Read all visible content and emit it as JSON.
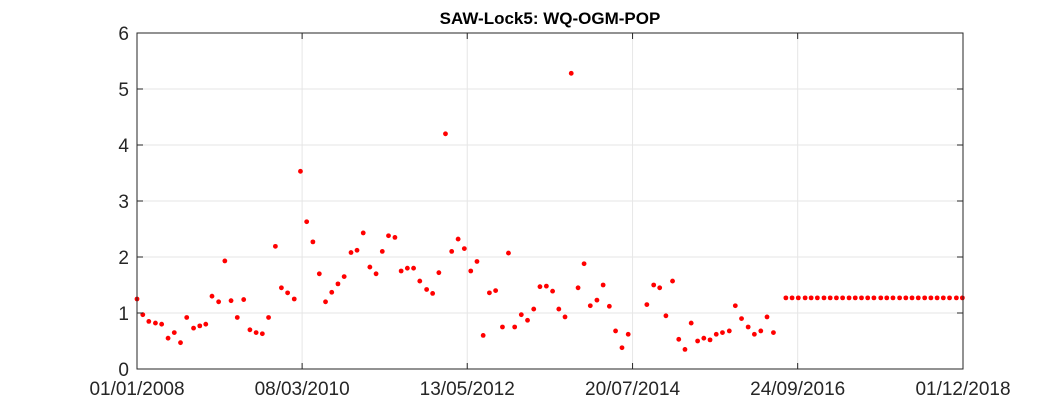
{
  "chart_data": {
    "type": "scatter",
    "title": "SAW-Lock5: WQ-OGM-POP",
    "xlabel": "",
    "ylabel": "",
    "x_tick_labels": [
      "01/01/2008",
      "08/03/2010",
      "13/05/2012",
      "20/07/2014",
      "24/09/2016",
      "01/12/2018"
    ],
    "x_ticks": [
      "2008-01-01",
      "2010-03-08",
      "2012-05-13",
      "2014-07-20",
      "2016-09-24",
      "2018-12-01"
    ],
    "xlim": [
      "2008-01-01",
      "2018-12-01"
    ],
    "y_ticks": [
      0,
      1,
      2,
      3,
      4,
      5,
      6
    ],
    "y_tick_labels": [
      "0",
      "1",
      "2",
      "3",
      "4",
      "5",
      "6"
    ],
    "ylim": [
      0,
      6
    ],
    "grid": true,
    "marker_color": "#ff0000",
    "series": [
      {
        "points": [
          [
            "2008-01-01",
            1.25
          ],
          [
            "2008-01-29",
            0.97
          ],
          [
            "2008-02-27",
            0.85
          ],
          [
            "2008-03-30",
            0.82
          ],
          [
            "2008-04-29",
            0.8
          ],
          [
            "2008-05-30",
            0.55
          ],
          [
            "2008-06-29",
            0.65
          ],
          [
            "2008-07-29",
            0.47
          ],
          [
            "2008-08-28",
            0.92
          ],
          [
            "2008-09-30",
            0.73
          ],
          [
            "2008-10-30",
            0.77
          ],
          [
            "2008-11-28",
            0.8
          ],
          [
            "2008-12-28",
            1.3
          ],
          [
            "2009-01-29",
            1.2
          ],
          [
            "2009-02-28",
            1.93
          ],
          [
            "2009-03-30",
            1.22
          ],
          [
            "2009-04-29",
            0.92
          ],
          [
            "2009-05-30",
            1.24
          ],
          [
            "2009-06-29",
            0.7
          ],
          [
            "2009-07-29",
            0.65
          ],
          [
            "2009-08-28",
            0.63
          ],
          [
            "2009-09-27",
            0.92
          ],
          [
            "2009-10-30",
            2.19
          ],
          [
            "2009-11-28",
            1.45
          ],
          [
            "2009-12-28",
            1.36
          ],
          [
            "2010-01-29",
            1.25
          ],
          [
            "2010-02-28",
            3.53
          ],
          [
            "2010-03-30",
            2.63
          ],
          [
            "2010-04-29",
            2.27
          ],
          [
            "2010-05-30",
            1.7
          ],
          [
            "2010-06-29",
            1.2
          ],
          [
            "2010-07-29",
            1.37
          ],
          [
            "2010-08-28",
            1.52
          ],
          [
            "2010-09-27",
            1.65
          ],
          [
            "2010-10-30",
            2.08
          ],
          [
            "2010-11-28",
            2.12
          ],
          [
            "2010-12-28",
            2.43
          ],
          [
            "2011-01-29",
            1.82
          ],
          [
            "2011-02-28",
            1.7
          ],
          [
            "2011-03-30",
            2.1
          ],
          [
            "2011-04-29",
            2.38
          ],
          [
            "2011-05-30",
            2.35
          ],
          [
            "2011-06-29",
            1.75
          ],
          [
            "2011-07-29",
            1.8
          ],
          [
            "2011-08-28",
            1.8
          ],
          [
            "2011-09-27",
            1.57
          ],
          [
            "2011-10-30",
            1.42
          ],
          [
            "2011-11-28",
            1.35
          ],
          [
            "2011-12-28",
            1.72
          ],
          [
            "2012-01-29",
            4.2
          ],
          [
            "2012-02-28",
            2.1
          ],
          [
            "2012-03-30",
            2.32
          ],
          [
            "2012-04-29",
            2.15
          ],
          [
            "2012-05-30",
            1.75
          ],
          [
            "2012-06-29",
            1.92
          ],
          [
            "2012-07-29",
            0.6
          ],
          [
            "2012-08-28",
            1.36
          ],
          [
            "2012-09-27",
            1.4
          ],
          [
            "2012-10-30",
            0.75
          ],
          [
            "2012-11-28",
            2.07
          ],
          [
            "2012-12-28",
            0.75
          ],
          [
            "2013-01-29",
            0.97
          ],
          [
            "2013-02-28",
            0.87
          ],
          [
            "2013-03-30",
            1.07
          ],
          [
            "2013-04-29",
            1.47
          ],
          [
            "2013-05-30",
            1.48
          ],
          [
            "2013-06-29",
            1.39
          ],
          [
            "2013-07-29",
            1.07
          ],
          [
            "2013-08-28",
            0.93
          ],
          [
            "2013-09-27",
            5.28
          ],
          [
            "2013-10-30",
            1.45
          ],
          [
            "2013-11-28",
            1.88
          ],
          [
            "2013-12-28",
            1.13
          ],
          [
            "2014-01-29",
            1.23
          ],
          [
            "2014-02-28",
            1.5
          ],
          [
            "2014-03-30",
            1.12
          ],
          [
            "2014-04-29",
            0.68
          ],
          [
            "2014-05-30",
            0.38
          ],
          [
            "2014-06-29",
            0.62
          ],
          [
            "2014-09-27",
            1.15
          ],
          [
            "2014-10-30",
            1.5
          ],
          [
            "2014-11-28",
            1.45
          ],
          [
            "2014-12-28",
            0.95
          ],
          [
            "2015-01-29",
            1.57
          ],
          [
            "2015-02-28",
            0.53
          ],
          [
            "2015-03-30",
            0.35
          ],
          [
            "2015-04-29",
            0.82
          ],
          [
            "2015-05-30",
            0.5
          ],
          [
            "2015-06-29",
            0.55
          ],
          [
            "2015-07-29",
            0.52
          ],
          [
            "2015-08-28",
            0.62
          ],
          [
            "2015-09-27",
            0.65
          ],
          [
            "2015-10-30",
            0.68
          ],
          [
            "2015-11-28",
            1.13
          ],
          [
            "2015-12-28",
            0.9
          ],
          [
            "2016-01-29",
            0.75
          ],
          [
            "2016-02-28",
            0.62
          ],
          [
            "2016-03-30",
            0.68
          ],
          [
            "2016-04-29",
            0.93
          ],
          [
            "2016-05-30",
            0.65
          ],
          [
            "2016-07-29",
            1.27
          ],
          [
            "2016-08-28",
            1.27
          ],
          [
            "2016-09-27",
            1.27
          ],
          [
            "2016-10-30",
            1.27
          ],
          [
            "2016-11-28",
            1.27
          ],
          [
            "2016-12-28",
            1.27
          ],
          [
            "2017-01-29",
            1.27
          ],
          [
            "2017-02-28",
            1.27
          ],
          [
            "2017-03-30",
            1.27
          ],
          [
            "2017-04-29",
            1.27
          ],
          [
            "2017-05-30",
            1.27
          ],
          [
            "2017-06-29",
            1.27
          ],
          [
            "2017-07-29",
            1.27
          ],
          [
            "2017-08-28",
            1.27
          ],
          [
            "2017-09-27",
            1.27
          ],
          [
            "2017-10-30",
            1.27
          ],
          [
            "2017-11-28",
            1.27
          ],
          [
            "2017-12-28",
            1.27
          ],
          [
            "2018-01-29",
            1.27
          ],
          [
            "2018-02-28",
            1.27
          ],
          [
            "2018-03-30",
            1.27
          ],
          [
            "2018-04-29",
            1.27
          ],
          [
            "2018-05-30",
            1.27
          ],
          [
            "2018-06-29",
            1.27
          ],
          [
            "2018-07-29",
            1.27
          ],
          [
            "2018-08-28",
            1.27
          ],
          [
            "2018-09-27",
            1.27
          ],
          [
            "2018-10-30",
            1.27
          ],
          [
            "2018-11-28",
            1.27
          ]
        ]
      }
    ]
  }
}
